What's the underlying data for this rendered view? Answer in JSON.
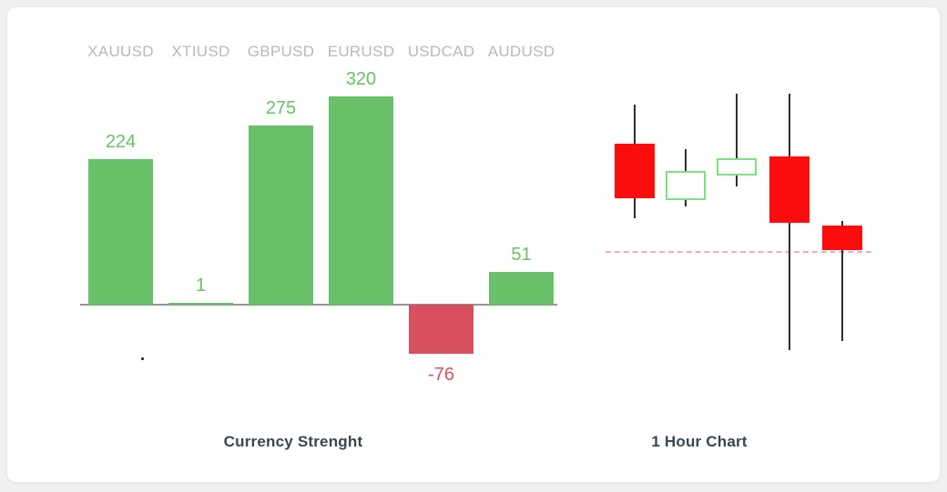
{
  "chart_data": [
    {
      "type": "bar",
      "title": "Currency Strenght",
      "categories": [
        "XAUUSD",
        "XTIUSD",
        "GBPUSD",
        "EURUSD",
        "USDCAD",
        "AUDUSD"
      ],
      "values": [
        224,
        1,
        275,
        320,
        -76,
        51
      ],
      "value_labels": [
        "224",
        "1",
        "275",
        "320",
        "-76",
        "51"
      ],
      "ylim": [
        -110,
        360
      ],
      "grid": false,
      "legend": false,
      "colors": {
        "positive": "#6abf69",
        "negative": "#d8505f",
        "axis": "#949494",
        "category_label": "#b6b9bc",
        "title": "#37474f"
      }
    },
    {
      "type": "candlestick",
      "title": "1 Hour Chart",
      "axes_hidden": true,
      "candles": [
        {
          "open": 242,
          "high": 285,
          "low": 160,
          "close": 182,
          "direction": "down",
          "body": "solid",
          "color": "#fb0d0d"
        },
        {
          "open": 180,
          "high": 236,
          "low": 173,
          "close": 212,
          "direction": "up",
          "body": "hollow",
          "color": "#7ee07e"
        },
        {
          "open": 207,
          "high": 297,
          "low": 195,
          "close": 226,
          "direction": "up",
          "body": "hollow",
          "color": "#7ee07e"
        },
        {
          "open": 228,
          "high": 297,
          "low": 15,
          "close": 155,
          "direction": "down",
          "body": "solid",
          "color": "#fb0d0d"
        },
        {
          "open": 152,
          "high": 157,
          "low": 25,
          "close": 125,
          "direction": "down",
          "body": "solid",
          "color": "#fb0d0d"
        }
      ],
      "reference_line": {
        "value": 123,
        "style": "dashed",
        "color": "#f9a8c6"
      },
      "wick_color": "#2e2e2e"
    }
  ]
}
